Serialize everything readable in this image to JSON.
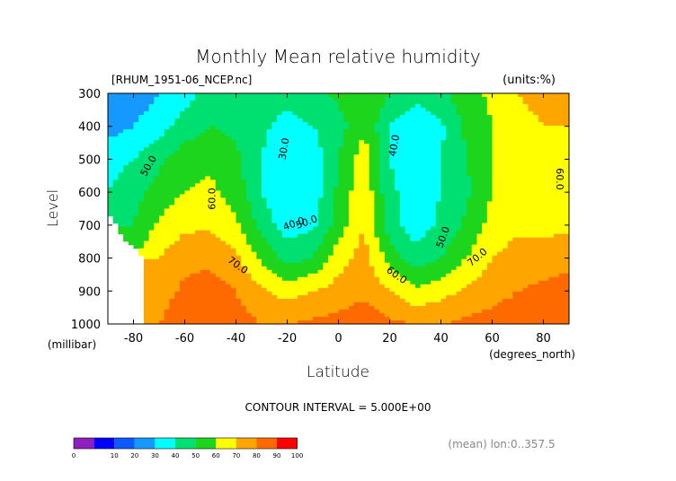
{
  "chart_data": {
    "type": "heatmap",
    "title": "Monthly Mean relative humidity",
    "file_label": "[RHUM_1951-06_NCEP.nc]",
    "units_label": "(units:%)",
    "ylabel": "Level",
    "yunit_label": "(millibar)",
    "xlabel": "Latitude",
    "xunit_label": "(degrees_north)",
    "y_reversed": true,
    "xlim": [
      -90,
      90
    ],
    "ylim": [
      1000,
      300
    ],
    "x_ticks": [
      -80,
      -60,
      -40,
      -20,
      0,
      20,
      40,
      60,
      80
    ],
    "y_ticks": [
      300,
      400,
      500,
      600,
      700,
      800,
      900,
      1000
    ],
    "x": [
      -90,
      -80,
      -70,
      -60,
      -50,
      -40,
      -30,
      -20,
      -10,
      0,
      10,
      20,
      30,
      40,
      50,
      60,
      70,
      80,
      90
    ],
    "levels": [
      1000,
      900,
      800,
      700,
      600,
      500,
      400,
      300
    ],
    "values": [
      [
        null,
        null,
        80,
        88,
        88,
        84,
        80,
        80,
        82,
        84,
        86,
        82,
        80,
        80,
        82,
        84,
        86,
        88,
        90
      ],
      [
        null,
        null,
        75,
        82,
        84,
        80,
        72,
        66,
        70,
        74,
        78,
        70,
        62,
        66,
        72,
        76,
        80,
        82,
        83
      ],
      [
        null,
        null,
        70,
        77,
        78,
        72,
        58,
        46,
        50,
        66,
        74,
        56,
        44,
        50,
        60,
        70,
        74,
        76,
        78
      ],
      [
        null,
        50,
        62,
        68,
        68,
        62,
        46,
        35,
        38,
        55,
        70,
        44,
        35,
        42,
        52,
        64,
        68,
        66,
        68
      ],
      [
        40,
        46,
        54,
        60,
        62,
        56,
        40,
        32,
        34,
        52,
        68,
        42,
        36,
        40,
        48,
        60,
        64,
        62,
        62
      ],
      [
        36,
        40,
        48,
        56,
        58,
        52,
        40,
        32,
        34,
        50,
        66,
        40,
        34,
        40,
        50,
        60,
        66,
        64,
        64
      ],
      [
        26,
        30,
        36,
        44,
        50,
        48,
        42,
        36,
        40,
        46,
        58,
        40,
        32,
        38,
        52,
        60,
        68,
        70,
        70
      ],
      [
        20,
        24,
        30,
        36,
        44,
        48,
        46,
        44,
        48,
        52,
        60,
        50,
        44,
        48,
        56,
        62,
        70,
        72,
        72
      ]
    ],
    "contour_interval_label": "CONTOUR INTERVAL = 5.000E+00",
    "contour_labels": [
      "30.0",
      "40.0",
      "40.0",
      "50.0",
      "50.0",
      "50.0",
      "60.0",
      "60.0",
      "60.0",
      "70.0",
      "70.0"
    ],
    "colorbar": {
      "bounds": [
        "0",
        "10",
        "20",
        "30",
        "40",
        "50",
        "60",
        "70",
        "80",
        "90",
        "100"
      ],
      "colors": [
        "#8f1fbf",
        "#0000ff",
        "#0d59ff",
        "#1599ff",
        "#00ffff",
        "#00e070",
        "#1cd51c",
        "#ffff00",
        "#ffa500",
        "#ff6a00",
        "#ff0000"
      ]
    },
    "footnote": "(mean) lon:0..357.5"
  }
}
